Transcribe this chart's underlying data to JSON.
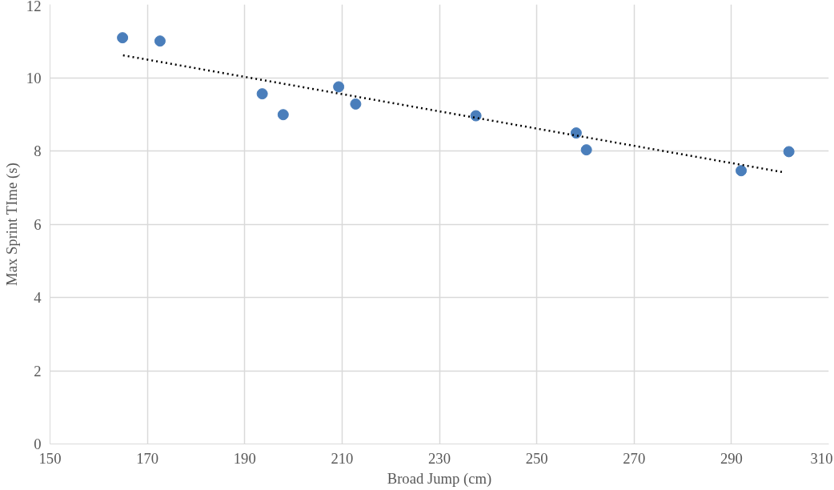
{
  "chart_data": {
    "type": "scatter",
    "xlabel": "Broad Jump (cm)",
    "ylabel": "Max Sprint TIme (s)",
    "xlim": [
      150,
      310
    ],
    "xticks": [
      150,
      170,
      190,
      210,
      230,
      250,
      270,
      290,
      310
    ],
    "ylim": [
      0,
      12
    ],
    "yticks": [
      0,
      2,
      4,
      6,
      8,
      10,
      12
    ],
    "grid": true,
    "series": [
      {
        "color": "#4a7ebb",
        "marker": "circle",
        "x": [
          164.9,
          172.6,
          193.6,
          197.9,
          209.3,
          212.8,
          237.5,
          258.1,
          260.2,
          292.0,
          301.8
        ],
        "values": [
          11.09,
          11.0,
          9.56,
          8.99,
          9.75,
          9.28,
          8.96,
          8.49,
          8.03,
          7.46,
          7.98
        ]
      },
      {
        "type": "line",
        "color": "#000000",
        "line_style": "dotted",
        "x": [
          165,
          301
        ],
        "values": [
          10.61,
          7.41
        ]
      }
    ]
  }
}
